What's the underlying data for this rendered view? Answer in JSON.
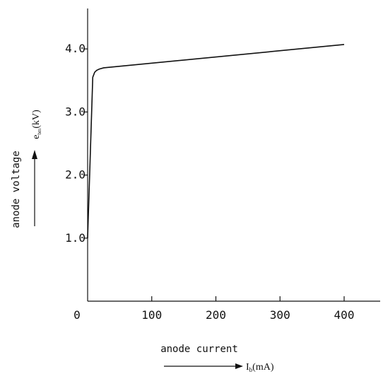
{
  "chart_data": {
    "type": "line",
    "xlabel": "anode current",
    "xunit": "I_b(mA)",
    "xunit_main": "I",
    "xunit_sub": "b",
    "xunit_rest": "(mA)",
    "ylabel": "anode voltage",
    "yunit": "e_bm(kV)",
    "yunit_main": "e",
    "yunit_sub": "bm",
    "yunit_rest": "(kV)",
    "xlim": [
      0,
      460
    ],
    "ylim": [
      0,
      4.5
    ],
    "xticks": [
      0,
      100,
      200,
      300,
      400
    ],
    "xtick_labels": [
      "0",
      "100",
      "200",
      "300",
      "400"
    ],
    "yticks": [
      1,
      2,
      3,
      4
    ],
    "ytick_labels": [
      "1.0",
      "2.0",
      "3.0",
      "4.0"
    ],
    "series": [
      {
        "x": [
          0,
          8,
          11,
          14,
          18,
          25,
          400
        ],
        "y": [
          1.0,
          3.55,
          3.63,
          3.66,
          3.68,
          3.7,
          4.07
        ]
      }
    ]
  }
}
